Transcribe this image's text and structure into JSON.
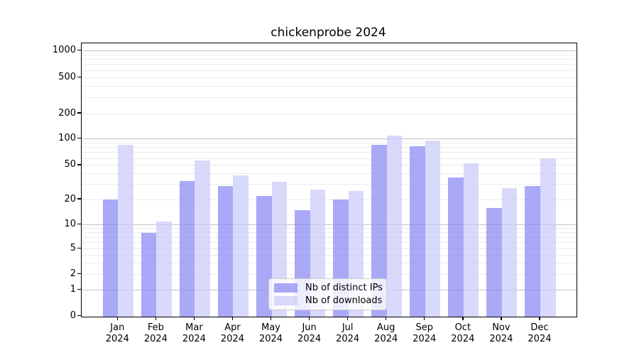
{
  "title": "chickenprobe 2024",
  "chart_data": {
    "type": "bar",
    "title": "chickenprobe 2024",
    "categories": [
      "Jan 2024",
      "Feb 2024",
      "Mar 2024",
      "Apr 2024",
      "May 2024",
      "Jun 2024",
      "Jul 2024",
      "Aug 2024",
      "Sep 2024",
      "Oct 2024",
      "Nov 2024",
      "Dec 2024"
    ],
    "series": [
      {
        "name": "Nb of distinct IPs",
        "color": "#8c8cf6",
        "values": [
          20,
          8,
          33,
          29,
          22,
          15,
          20,
          85,
          82,
          36,
          16,
          29
        ]
      },
      {
        "name": "Nb of downloads",
        "color": "#ccccfa",
        "values": [
          86,
          11,
          57,
          38,
          32,
          26,
          25,
          110,
          95,
          53,
          27,
          60
        ]
      }
    ],
    "yscale": "symlog",
    "yticks": [
      0,
      1,
      2,
      5,
      10,
      20,
      50,
      100,
      200,
      500,
      1000
    ],
    "minor_gridlines": [
      2,
      3,
      4,
      5,
      6,
      7,
      8,
      9,
      20,
      30,
      40,
      50,
      60,
      70,
      80,
      90,
      200,
      300,
      400,
      500,
      600,
      700,
      800,
      900
    ],
    "major_gridlines": [
      1,
      10,
      100,
      1000
    ],
    "ylim": [
      0,
      1100
    ],
    "grid": true,
    "legend_position": "lower center",
    "colors": {
      "grid_major": "#c3c3c3",
      "grid_minor": "#ebebeb",
      "spine": "#000000",
      "background": "#ffffff"
    }
  }
}
